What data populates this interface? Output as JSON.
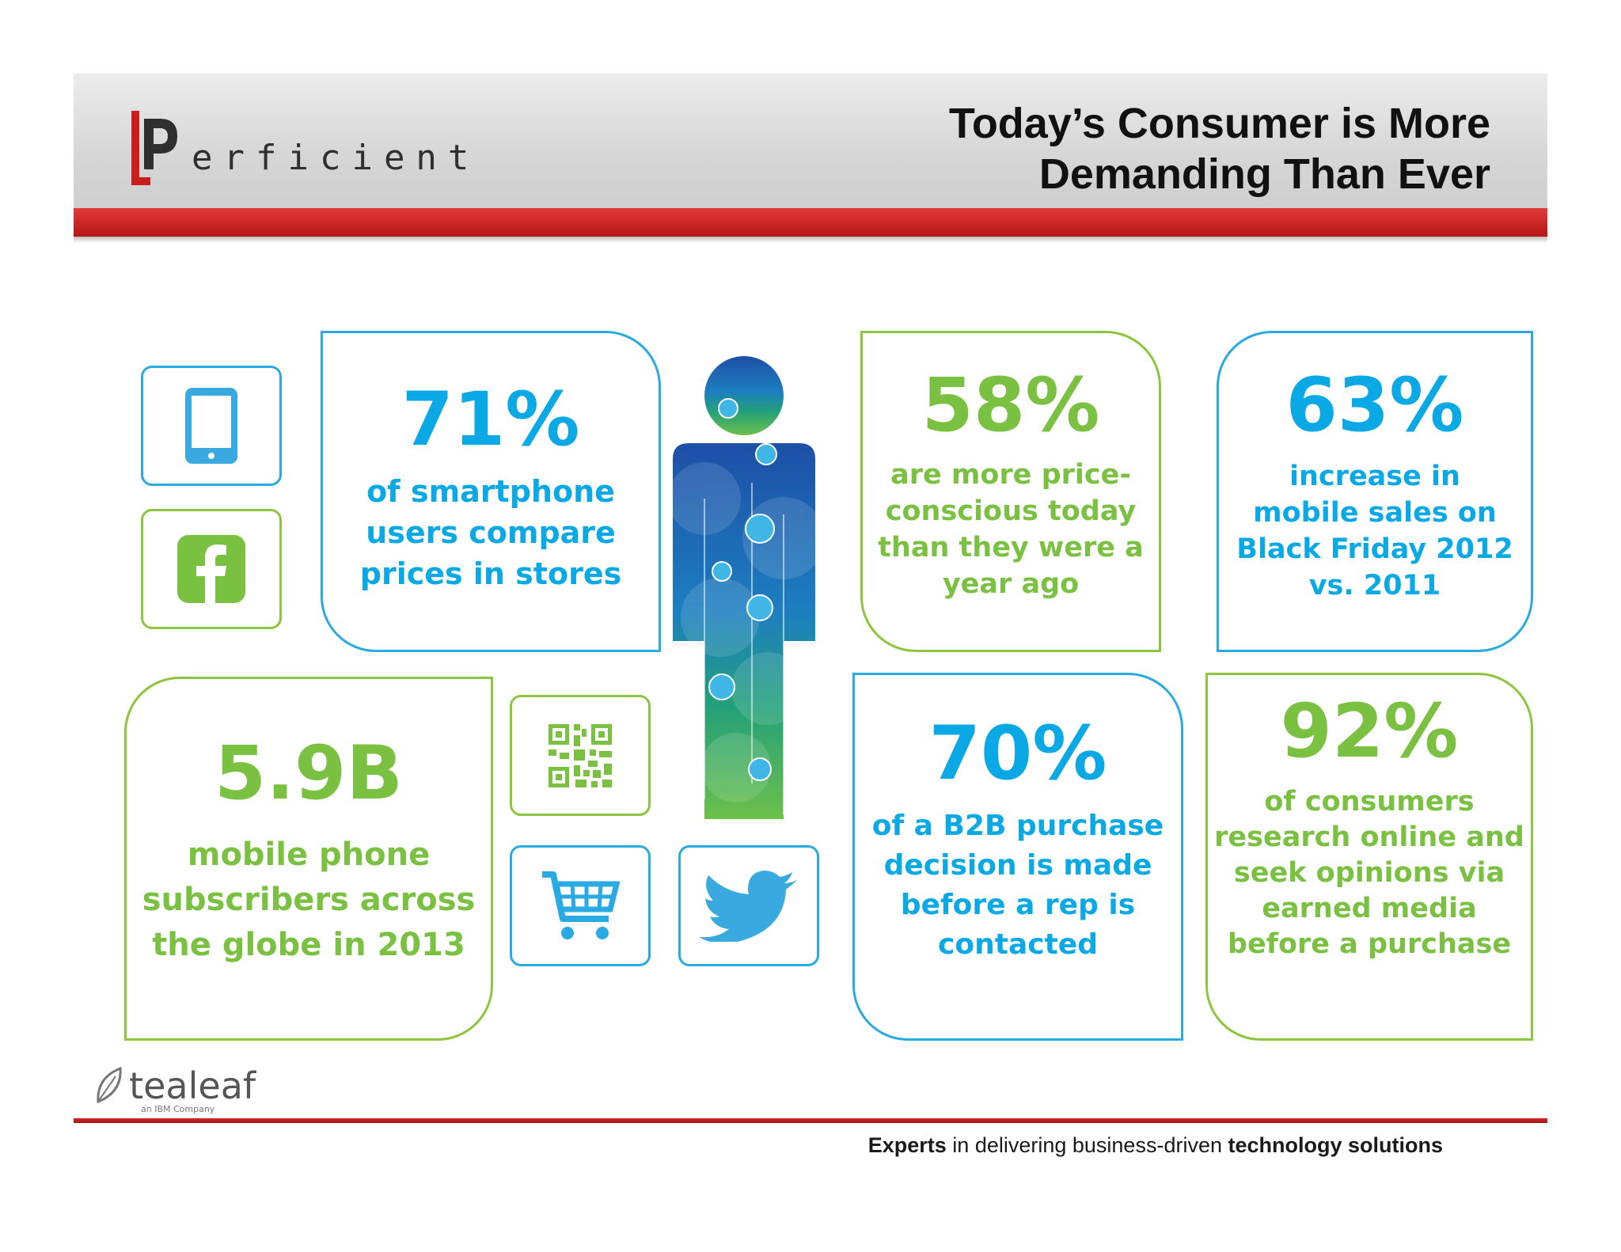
{
  "header": {
    "brand_name": "erficient",
    "brand_initial": "P",
    "title_line1": "Today’s Consumer is More",
    "title_line2": "Demanding Than Ever"
  },
  "stats": [
    {
      "value": "71%",
      "lines": [
        "of smartphone",
        "users compare",
        "prices in stores"
      ]
    },
    {
      "value": "58%",
      "lines": [
        "are more price-",
        "conscious today",
        "than they were a",
        "year ago"
      ]
    },
    {
      "value": "63%",
      "lines": [
        "increase in",
        "mobile sales on",
        "Black Friday 2012",
        "vs. 2011"
      ]
    },
    {
      "value": "5.9B",
      "lines": [
        "mobile phone",
        "subscribers across",
        "the globe in 2013"
      ]
    },
    {
      "value": "70%",
      "lines": [
        "of a B2B purchase",
        "decision is made",
        "before a rep is",
        "contacted"
      ]
    },
    {
      "value": "92%",
      "lines": [
        "of consumers",
        "research online and",
        "seek opinions via",
        "earned media",
        "before a purchase"
      ]
    }
  ],
  "icons": [
    "tablet-icon",
    "facebook-icon",
    "qr-code-icon",
    "shopping-cart-icon",
    "twitter-bird-icon",
    "person-figure-icon"
  ],
  "footer": {
    "partner_logo": "tealeaf",
    "partner_sub": "an IBM Company",
    "tagline_bold1": "Experts",
    "tagline_mid": " in delivering business-driven ",
    "tagline_bold2": "technology solutions"
  },
  "colors": {
    "blue": "#0aa9e6",
    "green": "#7ac142",
    "red": "#c81e1e"
  }
}
